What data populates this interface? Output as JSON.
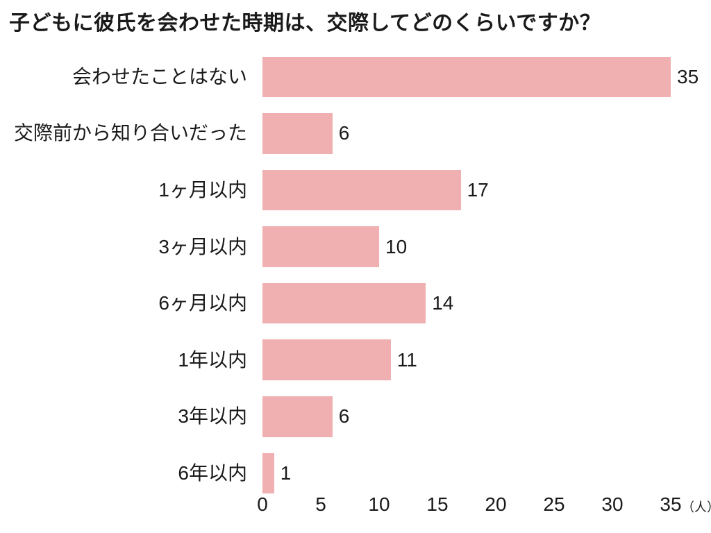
{
  "page": {
    "background": "#ffffff"
  },
  "chart_data": {
    "type": "bar",
    "orientation": "horizontal",
    "title": "子どもに彼氏を会わせた時期は、交際してどのくらいですか？",
    "categories": [
      "会わせたことはない",
      "交際前から知り合いだった",
      "1ヶ月以内",
      "3ヶ月以内",
      "6ヶ月以内",
      "1年以内",
      "3年以内",
      "6年以内"
    ],
    "values": [
      35,
      6,
      17,
      10,
      14,
      11,
      6,
      1
    ],
    "xlabel": "",
    "ylabel": "",
    "xlim": [
      0,
      35
    ],
    "x_ticks": [
      0,
      5,
      10,
      15,
      20,
      25,
      30,
      35
    ],
    "x_unit_label": "（人）",
    "value_labels_shown": true,
    "grid": false,
    "legend": null,
    "bar_color": "#F0AFB1",
    "text_color": "#1a1a1a"
  }
}
